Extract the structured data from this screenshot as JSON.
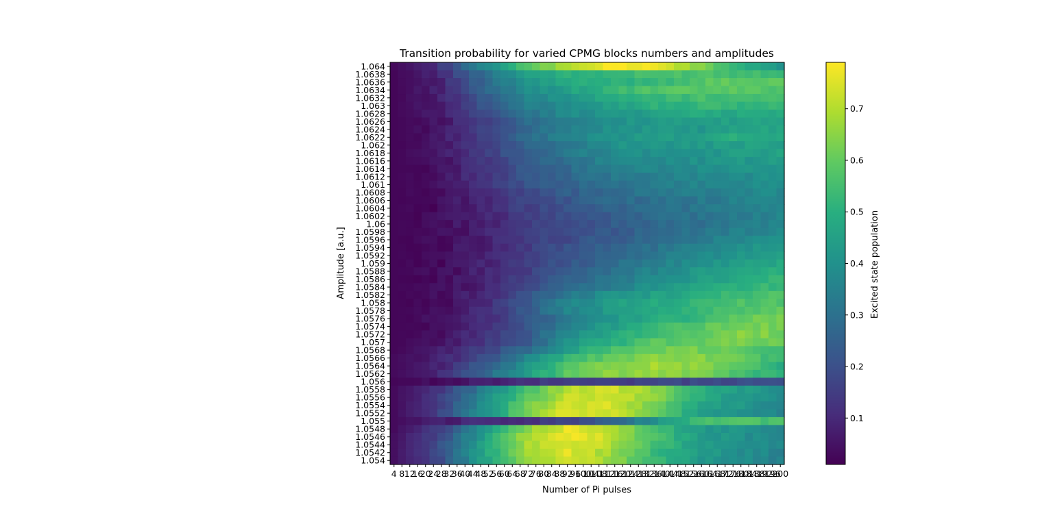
{
  "chart_data": {
    "type": "heatmap",
    "title": "Transition probability for varied CPMG blocks numbers and amplitudes",
    "xlabel": "Number of Pi pulses",
    "ylabel": "Amplitude [a.u.]",
    "colorbar_label": "Excited state population",
    "colormap": "viridis",
    "value_range": [
      0.01,
      0.79
    ],
    "colorbar_ticks": [
      0.1,
      0.2,
      0.3,
      0.4,
      0.5,
      0.6,
      0.7
    ],
    "colorbar_tick_labels": [
      "0.1",
      "0.2",
      "0.3",
      "0.4",
      "0.5",
      "0.6",
      "0.7"
    ],
    "x": [
      4,
      8,
      12,
      16,
      20,
      24,
      28,
      32,
      36,
      40,
      44,
      48,
      52,
      56,
      60,
      64,
      68,
      72,
      76,
      80,
      84,
      88,
      92,
      96,
      100,
      104,
      108,
      112,
      116,
      120,
      124,
      128,
      132,
      136,
      140,
      144,
      148,
      152,
      156,
      160,
      164,
      168,
      172,
      176,
      180,
      184,
      188,
      192,
      196,
      200
    ],
    "y_tick_labels_top_to_bottom": [
      "1.064",
      "1.0638",
      "1.0636",
      "1.0634",
      "1.0632",
      "1.063",
      "1.0628",
      "1.0626",
      "1.0624",
      "1.0622",
      "1.062",
      "1.0618",
      "1.0616",
      "1.0614",
      "1.0612",
      "1.061",
      "1.0608",
      "1.0606",
      "1.0604",
      "1.0602",
      "1.06",
      "1.0598",
      "1.0596",
      "1.0594",
      "1.0592",
      "1.059",
      "1.0588",
      "1.0586",
      "1.0584",
      "1.0582",
      "1.058",
      "1.0578",
      "1.0576",
      "1.0574",
      "1.0572",
      "1.057",
      "1.0568",
      "1.0566",
      "1.0564",
      "1.0562",
      "1.056",
      "1.0558",
      "1.0556",
      "1.0554",
      "1.0552",
      "1.055",
      "1.0548",
      "1.0546",
      "1.0544",
      "1.0542",
      "1.054"
    ],
    "row_profiles_top_to_bottom": [
      [
        0.03,
        0.12,
        0.35,
        0.55,
        0.7,
        0.78,
        0.77,
        0.65,
        0.5,
        0.42
      ],
      [
        0.02,
        0.09,
        0.28,
        0.45,
        0.5,
        0.52,
        0.55,
        0.57,
        0.55,
        0.55
      ],
      [
        0.02,
        0.08,
        0.25,
        0.4,
        0.48,
        0.5,
        0.53,
        0.57,
        0.6,
        0.58
      ],
      [
        0.02,
        0.08,
        0.24,
        0.38,
        0.45,
        0.52,
        0.57,
        0.58,
        0.58,
        0.58
      ],
      [
        0.02,
        0.07,
        0.22,
        0.35,
        0.42,
        0.48,
        0.52,
        0.55,
        0.55,
        0.55
      ],
      [
        0.02,
        0.07,
        0.2,
        0.33,
        0.4,
        0.45,
        0.5,
        0.52,
        0.52,
        0.52
      ],
      [
        0.02,
        0.06,
        0.18,
        0.3,
        0.38,
        0.42,
        0.45,
        0.48,
        0.48,
        0.48
      ],
      [
        0.02,
        0.05,
        0.15,
        0.28,
        0.35,
        0.4,
        0.42,
        0.43,
        0.45,
        0.46
      ],
      [
        0.02,
        0.05,
        0.15,
        0.27,
        0.35,
        0.4,
        0.42,
        0.42,
        0.45,
        0.46
      ],
      [
        0.02,
        0.05,
        0.16,
        0.27,
        0.36,
        0.41,
        0.43,
        0.45,
        0.5,
        0.48
      ],
      [
        0.02,
        0.05,
        0.15,
        0.25,
        0.33,
        0.4,
        0.42,
        0.42,
        0.45,
        0.45
      ],
      [
        0.02,
        0.05,
        0.14,
        0.24,
        0.32,
        0.38,
        0.4,
        0.4,
        0.44,
        0.45
      ],
      [
        0.02,
        0.04,
        0.13,
        0.23,
        0.3,
        0.36,
        0.38,
        0.4,
        0.42,
        0.43
      ],
      [
        0.02,
        0.04,
        0.12,
        0.22,
        0.28,
        0.34,
        0.37,
        0.38,
        0.4,
        0.42
      ],
      [
        0.02,
        0.04,
        0.12,
        0.21,
        0.27,
        0.32,
        0.35,
        0.37,
        0.38,
        0.4
      ],
      [
        0.02,
        0.04,
        0.11,
        0.2,
        0.26,
        0.3,
        0.34,
        0.36,
        0.37,
        0.39
      ],
      [
        0.02,
        0.03,
        0.1,
        0.18,
        0.24,
        0.28,
        0.32,
        0.34,
        0.36,
        0.38
      ],
      [
        0.02,
        0.03,
        0.09,
        0.17,
        0.22,
        0.27,
        0.3,
        0.32,
        0.35,
        0.37
      ],
      [
        0.02,
        0.03,
        0.09,
        0.16,
        0.21,
        0.25,
        0.29,
        0.31,
        0.34,
        0.36
      ],
      [
        0.02,
        0.03,
        0.08,
        0.15,
        0.2,
        0.24,
        0.28,
        0.3,
        0.33,
        0.36
      ],
      [
        0.02,
        0.03,
        0.08,
        0.14,
        0.19,
        0.23,
        0.27,
        0.3,
        0.33,
        0.36
      ],
      [
        0.02,
        0.03,
        0.08,
        0.14,
        0.19,
        0.23,
        0.27,
        0.31,
        0.35,
        0.38
      ],
      [
        0.02,
        0.03,
        0.08,
        0.14,
        0.19,
        0.24,
        0.28,
        0.33,
        0.37,
        0.4
      ],
      [
        0.02,
        0.03,
        0.08,
        0.14,
        0.2,
        0.25,
        0.3,
        0.35,
        0.4,
        0.43
      ],
      [
        0.02,
        0.03,
        0.08,
        0.15,
        0.21,
        0.26,
        0.32,
        0.37,
        0.42,
        0.45
      ],
      [
        0.02,
        0.03,
        0.08,
        0.15,
        0.22,
        0.28,
        0.34,
        0.4,
        0.44,
        0.47
      ],
      [
        0.02,
        0.03,
        0.08,
        0.15,
        0.23,
        0.3,
        0.36,
        0.42,
        0.46,
        0.5
      ],
      [
        0.02,
        0.03,
        0.08,
        0.16,
        0.25,
        0.32,
        0.38,
        0.44,
        0.48,
        0.52
      ],
      [
        0.02,
        0.03,
        0.08,
        0.17,
        0.27,
        0.34,
        0.4,
        0.46,
        0.5,
        0.54
      ],
      [
        0.02,
        0.03,
        0.09,
        0.2,
        0.32,
        0.4,
        0.45,
        0.5,
        0.54,
        0.56
      ],
      [
        0.02,
        0.03,
        0.09,
        0.22,
        0.36,
        0.44,
        0.48,
        0.52,
        0.56,
        0.58
      ],
      [
        0.02,
        0.03,
        0.1,
        0.22,
        0.36,
        0.43,
        0.48,
        0.52,
        0.57,
        0.6
      ],
      [
        0.02,
        0.04,
        0.1,
        0.2,
        0.33,
        0.42,
        0.48,
        0.53,
        0.6,
        0.62
      ],
      [
        0.02,
        0.04,
        0.1,
        0.2,
        0.35,
        0.44,
        0.52,
        0.58,
        0.62,
        0.62
      ],
      [
        0.02,
        0.04,
        0.11,
        0.21,
        0.38,
        0.48,
        0.55,
        0.6,
        0.65,
        0.62
      ],
      [
        0.02,
        0.05,
        0.12,
        0.22,
        0.4,
        0.5,
        0.58,
        0.6,
        0.63,
        0.6
      ],
      [
        0.02,
        0.06,
        0.15,
        0.28,
        0.45,
        0.55,
        0.62,
        0.62,
        0.6,
        0.55
      ],
      [
        0.03,
        0.07,
        0.18,
        0.35,
        0.52,
        0.6,
        0.65,
        0.65,
        0.6,
        0.52
      ],
      [
        0.03,
        0.08,
        0.22,
        0.4,
        0.57,
        0.65,
        0.68,
        0.65,
        0.58,
        0.5
      ],
      [
        0.03,
        0.09,
        0.25,
        0.43,
        0.58,
        0.65,
        0.66,
        0.62,
        0.56,
        0.5
      ],
      [
        0.02,
        0.04,
        0.08,
        0.12,
        0.15,
        0.16,
        0.17,
        0.17,
        0.18,
        0.2
      ],
      [
        0.03,
        0.12,
        0.32,
        0.55,
        0.7,
        0.73,
        0.66,
        0.5,
        0.44,
        0.4
      ],
      [
        0.03,
        0.14,
        0.35,
        0.57,
        0.72,
        0.74,
        0.65,
        0.5,
        0.42,
        0.38
      ],
      [
        0.03,
        0.15,
        0.37,
        0.6,
        0.74,
        0.74,
        0.63,
        0.48,
        0.42,
        0.37
      ],
      [
        0.03,
        0.15,
        0.38,
        0.62,
        0.76,
        0.73,
        0.6,
        0.46,
        0.4,
        0.37
      ],
      [
        0.03,
        0.07,
        0.1,
        0.12,
        0.16,
        0.25,
        0.4,
        0.55,
        0.58,
        0.55
      ],
      [
        0.03,
        0.15,
        0.38,
        0.64,
        0.76,
        0.7,
        0.55,
        0.44,
        0.4,
        0.38
      ],
      [
        0.04,
        0.17,
        0.42,
        0.68,
        0.78,
        0.72,
        0.56,
        0.44,
        0.4,
        0.37
      ],
      [
        0.04,
        0.18,
        0.44,
        0.68,
        0.76,
        0.7,
        0.55,
        0.44,
        0.4,
        0.36
      ],
      [
        0.04,
        0.18,
        0.45,
        0.67,
        0.75,
        0.68,
        0.54,
        0.44,
        0.39,
        0.36
      ],
      [
        0.04,
        0.17,
        0.44,
        0.66,
        0.74,
        0.67,
        0.53,
        0.43,
        0.39,
        0.35
      ]
    ],
    "row_profile_note": "each row profile gives values at x = 4, 26, 48, 70, 92, 114, 136, 158, 180, 200"
  }
}
